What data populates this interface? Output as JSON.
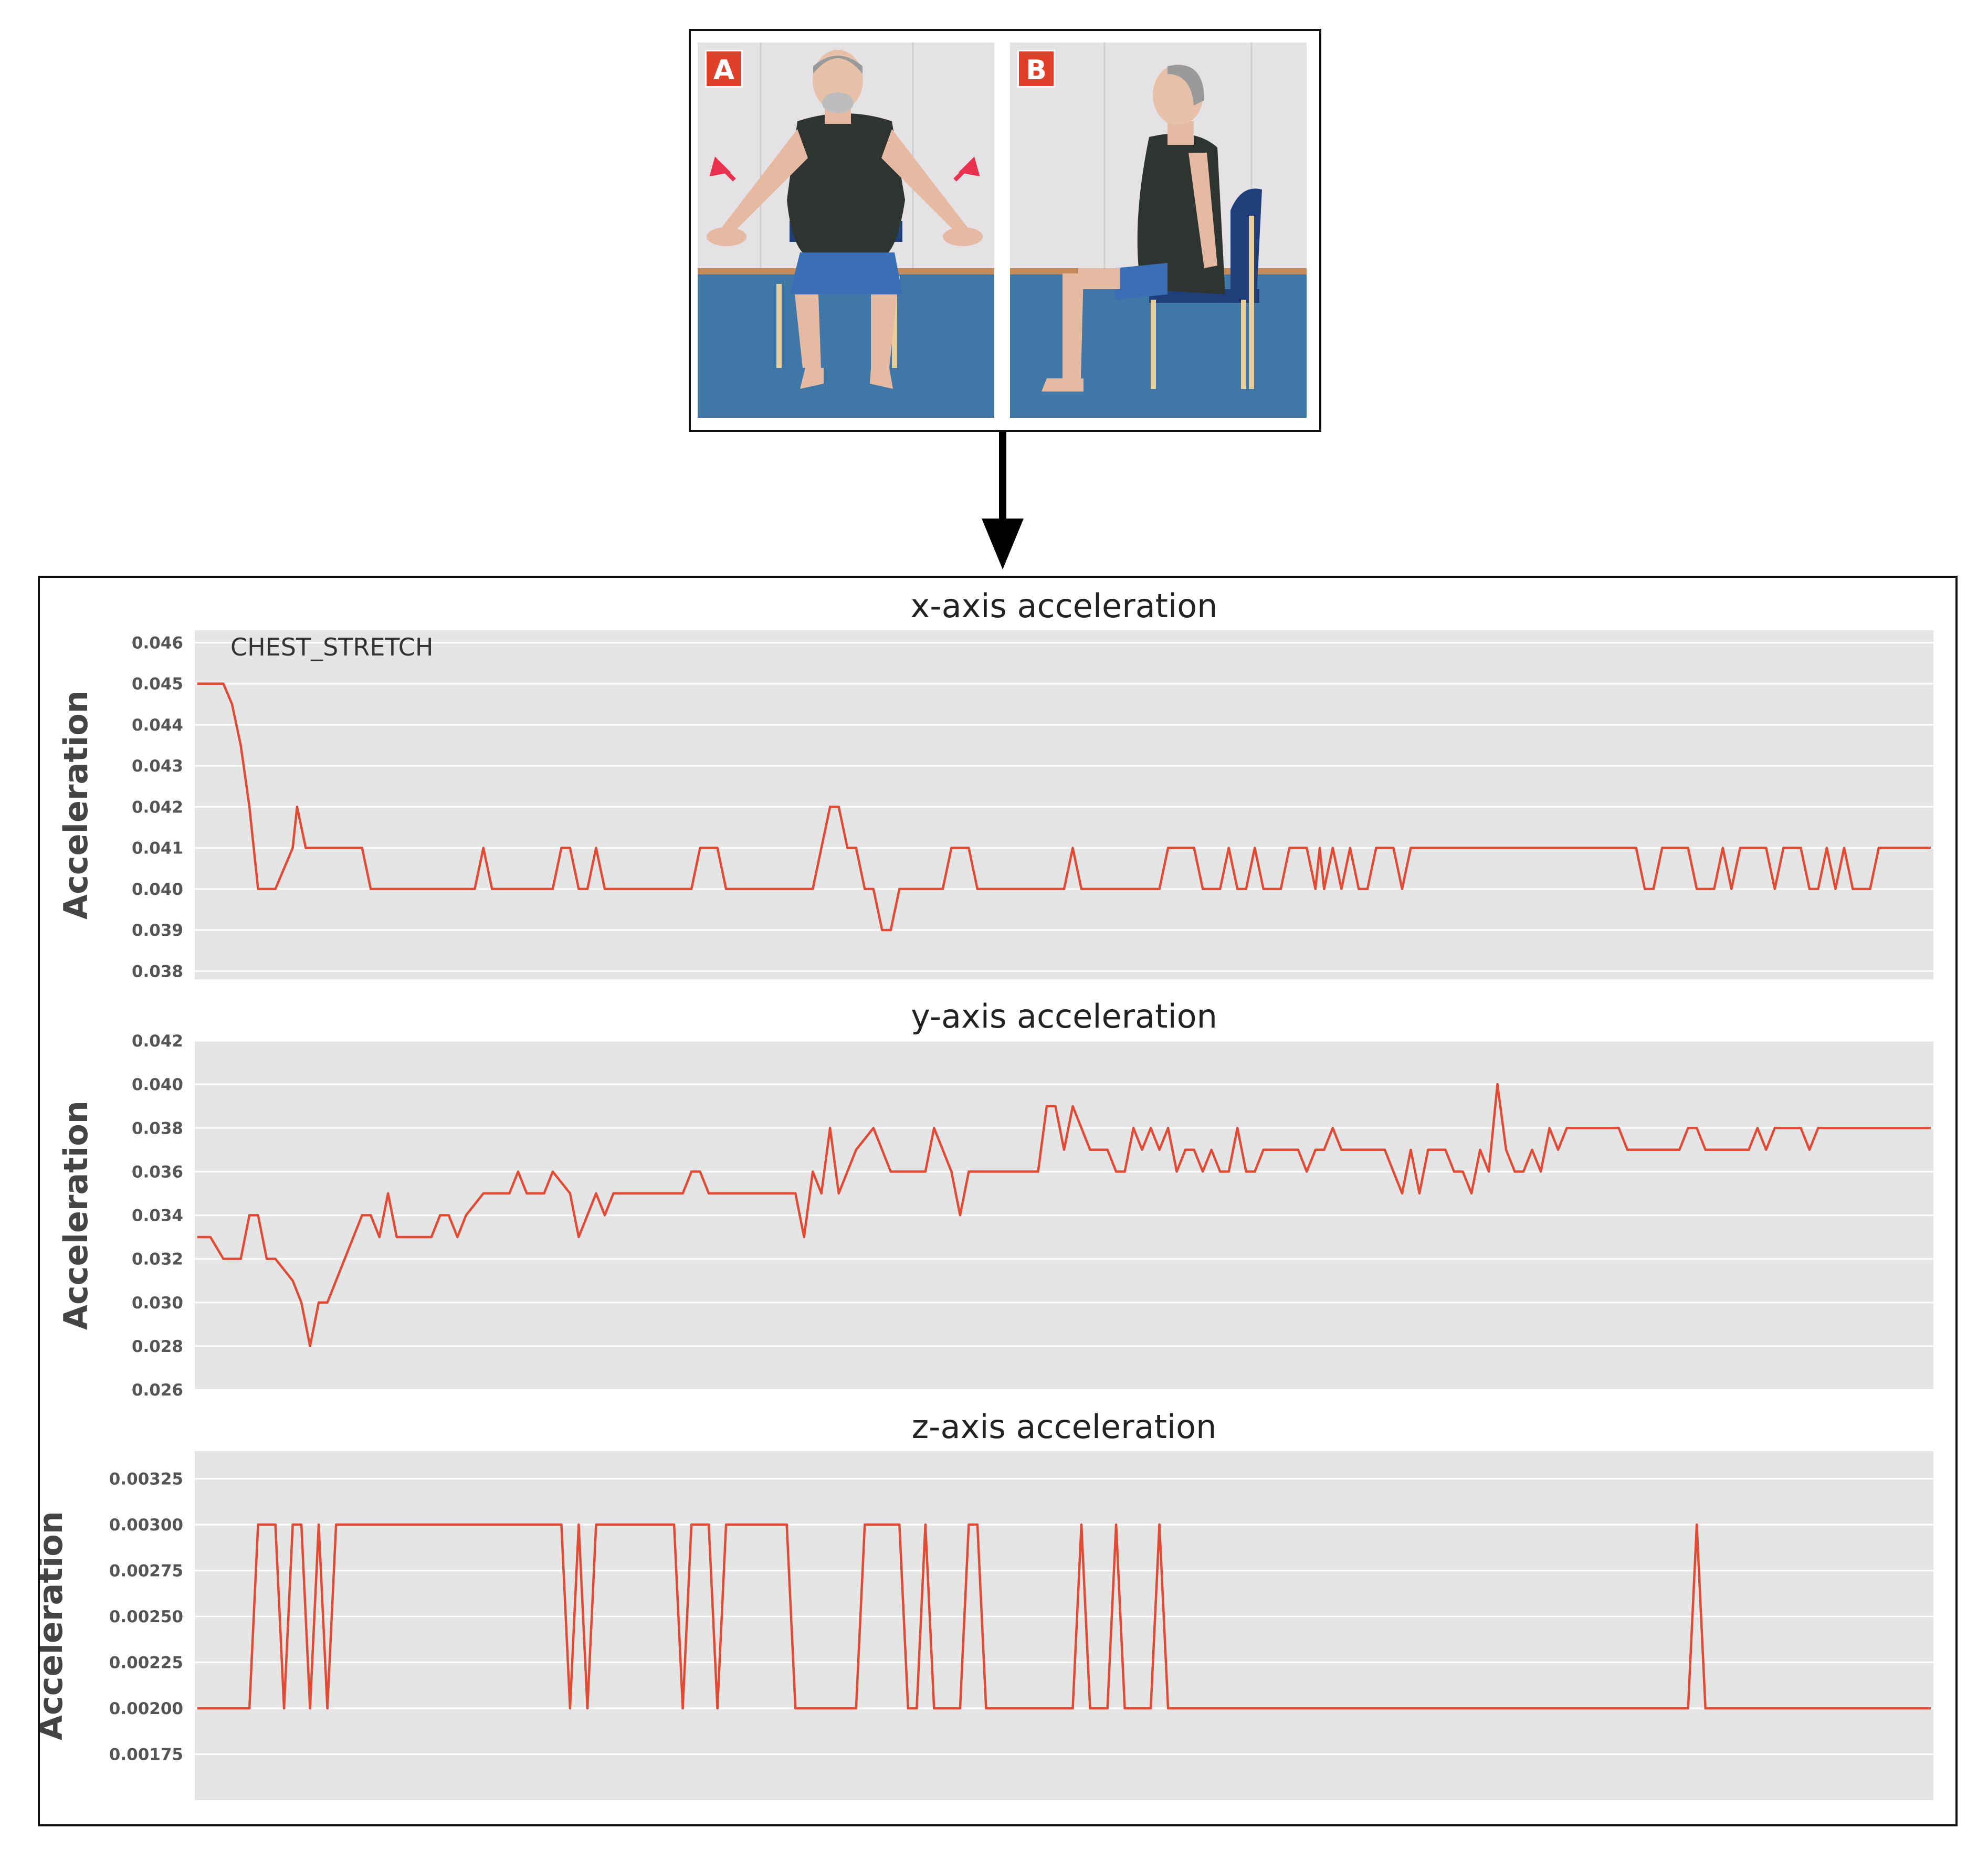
{
  "photo_panels": [
    {
      "badge": "A"
    },
    {
      "badge": "B"
    }
  ],
  "colors": {
    "line": "#e24a33",
    "plot_bg": "#e5e5e5",
    "grid": "#ffffff",
    "badge": "#e0402a"
  },
  "chart_data": [
    {
      "type": "line",
      "title": "x-axis acceleration",
      "ylabel": "Acceleration",
      "annotation": "CHEST_STRETCH",
      "ylim": [
        0.0378,
        0.0463
      ],
      "yticks": [
        "0.038",
        "0.039",
        "0.040",
        "0.041",
        "0.042",
        "0.043",
        "0.044",
        "0.045",
        "0.046"
      ],
      "xlim": [
        0,
        200
      ],
      "series": [
        {
          "points": [
            [
              0,
              0.045
            ],
            [
              3,
              0.045
            ],
            [
              4,
              0.0445
            ],
            [
              5,
              0.0435
            ],
            [
              6,
              0.042
            ],
            [
              7,
              0.04
            ],
            [
              9,
              0.04
            ],
            [
              11,
              0.041
            ],
            [
              11.5,
              0.042
            ],
            [
              12.5,
              0.041
            ],
            [
              19,
              0.041
            ],
            [
              20,
              0.04
            ],
            [
              32,
              0.04
            ],
            [
              33,
              0.041
            ],
            [
              34,
              0.04
            ],
            [
              41,
              0.04
            ],
            [
              42,
              0.041
            ],
            [
              43,
              0.041
            ],
            [
              44,
              0.04
            ],
            [
              45,
              0.04
            ],
            [
              46,
              0.041
            ],
            [
              47,
              0.04
            ],
            [
              57,
              0.04
            ],
            [
              58,
              0.041
            ],
            [
              60,
              0.041
            ],
            [
              61,
              0.04
            ],
            [
              71,
              0.04
            ],
            [
              72,
              0.041
            ],
            [
              73,
              0.042
            ],
            [
              74,
              0.042
            ],
            [
              75,
              0.041
            ],
            [
              76,
              0.041
            ],
            [
              77,
              0.04
            ],
            [
              78,
              0.04
            ],
            [
              79,
              0.039
            ],
            [
              80,
              0.039
            ],
            [
              81,
              0.04
            ],
            [
              86,
              0.04
            ],
            [
              87,
              0.041
            ],
            [
              89,
              0.041
            ],
            [
              90,
              0.04
            ],
            [
              100,
              0.04
            ],
            [
              101,
              0.041
            ],
            [
              102,
              0.04
            ],
            [
              111,
              0.04
            ],
            [
              112,
              0.041
            ],
            [
              115,
              0.041
            ],
            [
              116,
              0.04
            ],
            [
              118,
              0.04
            ],
            [
              119,
              0.041
            ],
            [
              120,
              0.04
            ],
            [
              121,
              0.04
            ],
            [
              122,
              0.041
            ],
            [
              123,
              0.04
            ],
            [
              125,
              0.04
            ],
            [
              126,
              0.041
            ],
            [
              128,
              0.041
            ],
            [
              129,
              0.04
            ],
            [
              129.5,
              0.041
            ],
            [
              130,
              0.04
            ],
            [
              131,
              0.041
            ],
            [
              132,
              0.04
            ],
            [
              133,
              0.041
            ],
            [
              134,
              0.04
            ],
            [
              135,
              0.04
            ],
            [
              136,
              0.041
            ],
            [
              138,
              0.041
            ],
            [
              139,
              0.04
            ],
            [
              140,
              0.041
            ],
            [
              166,
              0.041
            ],
            [
              167,
              0.04
            ],
            [
              168,
              0.04
            ],
            [
              169,
              0.041
            ],
            [
              172,
              0.041
            ],
            [
              173,
              0.04
            ],
            [
              175,
              0.04
            ],
            [
              176,
              0.041
            ],
            [
              177,
              0.04
            ],
            [
              178,
              0.041
            ],
            [
              181,
              0.041
            ],
            [
              182,
              0.04
            ],
            [
              183,
              0.041
            ],
            [
              185,
              0.041
            ],
            [
              186,
              0.04
            ],
            [
              187,
              0.04
            ],
            [
              188,
              0.041
            ],
            [
              189,
              0.04
            ],
            [
              190,
              0.041
            ],
            [
              191,
              0.04
            ],
            [
              193,
              0.04
            ],
            [
              194,
              0.041
            ],
            [
              200,
              0.041
            ]
          ]
        }
      ]
    },
    {
      "type": "line",
      "title": "y-axis acceleration",
      "ylabel": "Acceleration",
      "ylim": [
        0.026,
        0.042
      ],
      "yticks": [
        "0.026",
        "0.028",
        "0.030",
        "0.032",
        "0.034",
        "0.036",
        "0.038",
        "0.040",
        "0.042"
      ],
      "xlim": [
        0,
        200
      ],
      "series": [
        {
          "points": [
            [
              0,
              0.033
            ],
            [
              1.5,
              0.033
            ],
            [
              3,
              0.032
            ],
            [
              5,
              0.032
            ],
            [
              6,
              0.034
            ],
            [
              7,
              0.034
            ],
            [
              8,
              0.032
            ],
            [
              9,
              0.032
            ],
            [
              11,
              0.031
            ],
            [
              12,
              0.03
            ],
            [
              13,
              0.028
            ],
            [
              14,
              0.03
            ],
            [
              15,
              0.03
            ],
            [
              17,
              0.032
            ],
            [
              19,
              0.034
            ],
            [
              20,
              0.034
            ],
            [
              21,
              0.033
            ],
            [
              22,
              0.035
            ],
            [
              23,
              0.033
            ],
            [
              27,
              0.033
            ],
            [
              28,
              0.034
            ],
            [
              29,
              0.034
            ],
            [
              30,
              0.033
            ],
            [
              31,
              0.034
            ],
            [
              33,
              0.035
            ],
            [
              36,
              0.035
            ],
            [
              37,
              0.036
            ],
            [
              38,
              0.035
            ],
            [
              40,
              0.035
            ],
            [
              41,
              0.036
            ],
            [
              43,
              0.035
            ],
            [
              44,
              0.033
            ],
            [
              46,
              0.035
            ],
            [
              47,
              0.034
            ],
            [
              48,
              0.035
            ],
            [
              56,
              0.035
            ],
            [
              57,
              0.036
            ],
            [
              58,
              0.036
            ],
            [
              59,
              0.035
            ],
            [
              69,
              0.035
            ],
            [
              70,
              0.033
            ],
            [
              71,
              0.036
            ],
            [
              72,
              0.035
            ],
            [
              73,
              0.038
            ],
            [
              74,
              0.035
            ],
            [
              76,
              0.037
            ],
            [
              78,
              0.038
            ],
            [
              80,
              0.036
            ],
            [
              84,
              0.036
            ],
            [
              85,
              0.038
            ],
            [
              87,
              0.036
            ],
            [
              88,
              0.034
            ],
            [
              89,
              0.036
            ],
            [
              97,
              0.036
            ],
            [
              98,
              0.039
            ],
            [
              99,
              0.039
            ],
            [
              100,
              0.037
            ],
            [
              101,
              0.039
            ],
            [
              103,
              0.037
            ],
            [
              105,
              0.037
            ],
            [
              106,
              0.036
            ],
            [
              107,
              0.036
            ],
            [
              108,
              0.038
            ],
            [
              109,
              0.037
            ],
            [
              110,
              0.038
            ],
            [
              111,
              0.037
            ],
            [
              112,
              0.038
            ],
            [
              113,
              0.036
            ],
            [
              114,
              0.037
            ],
            [
              115,
              0.037
            ],
            [
              116,
              0.036
            ],
            [
              117,
              0.037
            ],
            [
              118,
              0.036
            ],
            [
              119,
              0.036
            ],
            [
              120,
              0.038
            ],
            [
              121,
              0.036
            ],
            [
              122,
              0.036
            ],
            [
              123,
              0.037
            ],
            [
              127,
              0.037
            ],
            [
              128,
              0.036
            ],
            [
              129,
              0.037
            ],
            [
              130,
              0.037
            ],
            [
              131,
              0.038
            ],
            [
              132,
              0.037
            ],
            [
              137,
              0.037
            ],
            [
              138,
              0.036
            ],
            [
              139,
              0.035
            ],
            [
              140,
              0.037
            ],
            [
              141,
              0.035
            ],
            [
              142,
              0.037
            ],
            [
              144,
              0.037
            ],
            [
              145,
              0.036
            ],
            [
              146,
              0.036
            ],
            [
              147,
              0.035
            ],
            [
              148,
              0.037
            ],
            [
              149,
              0.036
            ],
            [
              150,
              0.04
            ],
            [
              151,
              0.037
            ],
            [
              152,
              0.036
            ],
            [
              153,
              0.036
            ],
            [
              154,
              0.037
            ],
            [
              155,
              0.036
            ],
            [
              156,
              0.038
            ],
            [
              157,
              0.037
            ],
            [
              158,
              0.038
            ],
            [
              164,
              0.038
            ],
            [
              165,
              0.037
            ],
            [
              171,
              0.037
            ],
            [
              172,
              0.038
            ],
            [
              173,
              0.038
            ],
            [
              174,
              0.037
            ],
            [
              179,
              0.037
            ],
            [
              180,
              0.038
            ],
            [
              181,
              0.037
            ],
            [
              182,
              0.038
            ],
            [
              185,
              0.038
            ],
            [
              186,
              0.037
            ],
            [
              187,
              0.038
            ],
            [
              200,
              0.038
            ]
          ]
        }
      ]
    },
    {
      "type": "line",
      "title": "z-axis acceleration",
      "ylabel": "Acceleration",
      "ylim": [
        0.0015,
        0.0034
      ],
      "yticks": [
        "0.00175",
        "0.00200",
        "0.00225",
        "0.00250",
        "0.00275",
        "0.00300",
        "0.00325"
      ],
      "xlim": [
        0,
        200
      ],
      "series": [
        {
          "points": [
            [
              0,
              0.002
            ],
            [
              6,
              0.002
            ],
            [
              7,
              0.003
            ],
            [
              9,
              0.003
            ],
            [
              10,
              0.002
            ],
            [
              11,
              0.003
            ],
            [
              12,
              0.003
            ],
            [
              13,
              0.002
            ],
            [
              14,
              0.003
            ],
            [
              15,
              0.002
            ],
            [
              16,
              0.003
            ],
            [
              42,
              0.003
            ],
            [
              43,
              0.002
            ],
            [
              44,
              0.003
            ],
            [
              45,
              0.002
            ],
            [
              46,
              0.003
            ],
            [
              55,
              0.003
            ],
            [
              56,
              0.002
            ],
            [
              57,
              0.003
            ],
            [
              59,
              0.003
            ],
            [
              60,
              0.002
            ],
            [
              61,
              0.003
            ],
            [
              68,
              0.003
            ],
            [
              69,
              0.002
            ],
            [
              76,
              0.002
            ],
            [
              77,
              0.003
            ],
            [
              81,
              0.003
            ],
            [
              82,
              0.002
            ],
            [
              83,
              0.002
            ],
            [
              84,
              0.003
            ],
            [
              85,
              0.002
            ],
            [
              88,
              0.002
            ],
            [
              89,
              0.003
            ],
            [
              90,
              0.003
            ],
            [
              91,
              0.002
            ],
            [
              101,
              0.002
            ],
            [
              102,
              0.003
            ],
            [
              103,
              0.002
            ],
            [
              105,
              0.002
            ],
            [
              106,
              0.003
            ],
            [
              107,
              0.002
            ],
            [
              110,
              0.002
            ],
            [
              111,
              0.003
            ],
            [
              112,
              0.002
            ],
            [
              172,
              0.002
            ],
            [
              173,
              0.003
            ],
            [
              174,
              0.002
            ],
            [
              200,
              0.002
            ]
          ]
        }
      ]
    }
  ]
}
